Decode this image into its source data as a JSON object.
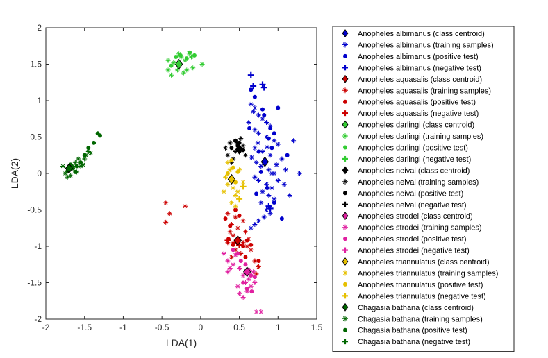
{
  "chart_data": {
    "type": "scatter",
    "xlabel": "LDA(1)",
    "ylabel": "LDA(2)",
    "xlim": [
      -2,
      1.5
    ],
    "ylim": [
      -2,
      2
    ],
    "xticks": [
      "-2",
      "-1.5",
      "-1",
      "-0.5",
      "0",
      "0.5",
      "1",
      "1.5"
    ],
    "yticks": [
      "2",
      "1.5",
      "1",
      "0.5",
      "0",
      "-0.5",
      "-1",
      "-1.5",
      "-2"
    ],
    "grid": false,
    "legend_position": "right-outside",
    "classes": [
      {
        "name": "Anopheles albimanus",
        "color": "#0000cc",
        "centroid": [
          0.83,
          0.16
        ],
        "training": [
          [
            0.65,
            0.95
          ],
          [
            0.7,
            0.9
          ],
          [
            0.75,
            0.8
          ],
          [
            0.8,
            0.75
          ],
          [
            0.85,
            0.7
          ],
          [
            0.9,
            0.65
          ],
          [
            0.7,
            0.6
          ],
          [
            0.75,
            0.55
          ],
          [
            0.85,
            0.5
          ],
          [
            0.95,
            0.45
          ],
          [
            1.0,
            0.4
          ],
          [
            0.7,
            0.35
          ],
          [
            0.8,
            0.3
          ],
          [
            0.9,
            0.25
          ],
          [
            1.05,
            0.2
          ],
          [
            0.72,
            0.15
          ],
          [
            0.78,
            0.1
          ],
          [
            0.88,
            0.05
          ],
          [
            0.95,
            0.0
          ],
          [
            1.1,
            0.05
          ],
          [
            0.7,
            -0.05
          ],
          [
            0.75,
            -0.1
          ],
          [
            0.85,
            -0.15
          ],
          [
            0.92,
            -0.2
          ],
          [
            1.0,
            -0.1
          ],
          [
            0.8,
            -0.25
          ],
          [
            0.88,
            -0.3
          ],
          [
            0.78,
            -0.4
          ],
          [
            0.95,
            -0.35
          ],
          [
            0.85,
            -0.5
          ],
          [
            0.9,
            -0.55
          ],
          [
            0.75,
            -0.65
          ],
          [
            0.7,
            -0.7
          ],
          [
            0.65,
            -0.75
          ],
          [
            0.82,
            -0.6
          ],
          [
            1.15,
            -0.3
          ],
          [
            1.28,
            0.0
          ],
          [
            1.2,
            0.45
          ],
          [
            0.62,
            0.7
          ],
          [
            0.68,
            0.85
          ],
          [
            0.92,
            0.0
          ],
          [
            0.98,
            0.12
          ],
          [
            0.74,
            0.42
          ],
          [
            0.66,
            0.22
          ],
          [
            0.86,
            0.36
          ],
          [
            1.08,
            -0.15
          ]
        ],
        "positive": [
          [
            0.65,
            1.15
          ],
          [
            0.7,
            1.05
          ],
          [
            0.8,
            0.88
          ],
          [
            0.9,
            0.62
          ],
          [
            0.95,
            0.55
          ],
          [
            0.88,
            0.48
          ],
          [
            0.75,
            0.3
          ],
          [
            0.86,
            -0.2
          ],
          [
            0.95,
            -0.4
          ],
          [
            1.05,
            -0.62
          ],
          [
            0.63,
            0.62
          ],
          [
            1.0,
            0.9
          ],
          [
            0.82,
            0.8
          ],
          [
            0.78,
            0.02
          ],
          [
            0.92,
            0.35
          ],
          [
            0.72,
            -0.28
          ],
          [
            1.12,
            0.25
          ]
        ],
        "negative": [
          [
            0.65,
            1.35
          ],
          [
            0.68,
            1.2
          ],
          [
            0.8,
            1.22
          ],
          [
            0.82,
            1.18
          ],
          [
            0.88,
            -0.45
          ],
          [
            0.9,
            -0.48
          ]
        ]
      },
      {
        "name": "Anopheles aquasalis",
        "color": "#cc0000",
        "centroid": [
          0.48,
          -0.92
        ],
        "training": [
          [
            -0.45,
            -0.4
          ],
          [
            -0.4,
            -0.55
          ],
          [
            -0.2,
            -0.45
          ],
          [
            -0.45,
            -0.67
          ],
          [
            0.35,
            -0.55
          ],
          [
            0.4,
            -0.7
          ],
          [
            0.45,
            -0.6
          ],
          [
            0.38,
            -0.8
          ],
          [
            0.42,
            -0.85
          ],
          [
            0.5,
            -0.9
          ],
          [
            0.55,
            -0.95
          ],
          [
            0.6,
            -1.0
          ],
          [
            0.35,
            -0.95
          ],
          [
            0.45,
            -1.05
          ],
          [
            0.52,
            -1.1
          ],
          [
            0.58,
            -0.8
          ],
          [
            0.62,
            -0.9
          ],
          [
            0.4,
            -1.15
          ],
          [
            0.7,
            -1.2
          ],
          [
            0.75,
            -1.28
          ],
          [
            0.72,
            -1.38
          ],
          [
            0.48,
            -0.75
          ],
          [
            0.55,
            -0.65
          ],
          [
            0.65,
            -1.05
          ]
        ],
        "positive": [
          [
            0.32,
            -0.62
          ],
          [
            0.38,
            -0.72
          ],
          [
            0.45,
            -0.5
          ],
          [
            0.5,
            -0.58
          ],
          [
            0.55,
            -1.0
          ],
          [
            0.6,
            -0.92
          ],
          [
            0.65,
            -0.98
          ],
          [
            0.42,
            -0.98
          ],
          [
            0.75,
            -1.2
          ],
          [
            0.36,
            -0.9
          ],
          [
            0.58,
            -1.15
          ]
        ],
        "negative": [
          [
            0.35,
            -0.92
          ],
          [
            0.44,
            -0.95
          ],
          [
            0.5,
            -0.98
          ]
        ]
      },
      {
        "name": "Anopheles darlingi",
        "color": "#33cc33",
        "centroid": [
          -0.28,
          1.5
        ],
        "training": [
          [
            -0.42,
            1.55
          ],
          [
            -0.42,
            1.42
          ],
          [
            -0.38,
            1.35
          ],
          [
            -0.3,
            1.42
          ],
          [
            -0.25,
            1.6
          ],
          [
            -0.2,
            1.55
          ],
          [
            -0.15,
            1.65
          ],
          [
            -0.12,
            1.6
          ],
          [
            -0.1,
            1.45
          ],
          [
            -0.18,
            1.42
          ],
          [
            -0.35,
            1.52
          ],
          [
            0.02,
            1.5
          ],
          [
            -0.28,
            1.64
          ],
          [
            -0.22,
            1.38
          ]
        ],
        "positive": [
          [
            -0.32,
            1.6
          ],
          [
            -0.26,
            1.62
          ],
          [
            -0.18,
            1.58
          ],
          [
            -0.14,
            1.66
          ],
          [
            -0.08,
            1.62
          ],
          [
            -0.38,
            1.48
          ]
        ],
        "negative": []
      },
      {
        "name": "Anopheles neivai",
        "color": "#000000",
        "centroid": [
          0.5,
          0.33
        ],
        "training": [
          [
            0.32,
            0.35
          ],
          [
            0.35,
            0.25
          ],
          [
            0.38,
            0.42
          ],
          [
            0.42,
            0.2
          ],
          [
            0.45,
            0.3
          ],
          [
            0.55,
            0.38
          ],
          [
            0.58,
            0.25
          ],
          [
            0.4,
            0.15
          ],
          [
            0.52,
            0.48
          ],
          [
            0.47,
            0.42
          ]
        ],
        "positive": [
          [
            0.45,
            0.45
          ],
          [
            0.5,
            0.42
          ],
          [
            0.55,
            0.32
          ],
          [
            0.4,
            0.35
          ],
          [
            0.48,
            0.38
          ]
        ],
        "negative": []
      },
      {
        "name": "Anopheles strodei",
        "color": "#e020a0",
        "centroid": [
          0.6,
          -1.35
        ],
        "training": [
          [
            0.3,
            -1.1
          ],
          [
            0.35,
            -1.2
          ],
          [
            0.38,
            -1.3
          ],
          [
            0.42,
            -1.25
          ],
          [
            0.5,
            -1.3
          ],
          [
            0.55,
            -1.4
          ],
          [
            0.58,
            -1.5
          ],
          [
            0.62,
            -1.45
          ],
          [
            0.65,
            -1.55
          ],
          [
            0.7,
            -1.5
          ],
          [
            0.5,
            -1.65
          ],
          [
            0.55,
            -1.7
          ],
          [
            0.6,
            -1.62
          ],
          [
            0.48,
            -1.55
          ],
          [
            0.72,
            -1.9
          ],
          [
            0.78,
            -1.9
          ],
          [
            0.68,
            -1.35
          ],
          [
            0.45,
            -1.12
          ],
          [
            0.35,
            -1.35
          ]
        ],
        "positive": [
          [
            0.42,
            -1.05
          ],
          [
            0.48,
            -1.1
          ],
          [
            0.52,
            -1.2
          ],
          [
            0.58,
            -1.25
          ],
          [
            0.62,
            -1.32
          ],
          [
            0.65,
            -1.4
          ],
          [
            0.7,
            -1.42
          ],
          [
            0.55,
            -1.5
          ],
          [
            0.6,
            -1.58
          ],
          [
            0.66,
            -1.62
          ]
        ],
        "negative": []
      },
      {
        "name": "Anopheles triannulatus",
        "color": "#e6c000",
        "centroid": [
          0.4,
          -0.08
        ],
        "training": [
          [
            0.32,
            -0.05
          ],
          [
            0.35,
            -0.15
          ],
          [
            0.38,
            0.05
          ],
          [
            0.42,
            -0.2
          ],
          [
            0.45,
            -0.3
          ],
          [
            0.48,
            -0.25
          ],
          [
            0.4,
            -0.4
          ],
          [
            0.45,
            -0.45
          ],
          [
            0.35,
            0.15
          ],
          [
            0.5,
            0.05
          ],
          [
            0.3,
            -0.25
          ],
          [
            0.55,
            -0.12
          ]
        ],
        "positive": [
          [
            0.35,
            0.0
          ],
          [
            0.42,
            0.08
          ],
          [
            0.48,
            0.02
          ],
          [
            0.45,
            -0.12
          ],
          [
            0.4,
            0.18
          ]
        ],
        "negative": [
          [
            0.5,
            -0.35
          ],
          [
            0.55,
            -0.18
          ]
        ]
      },
      {
        "name": "Chagasia bathana",
        "color": "#006600",
        "centroid": [
          -1.7,
          0.07
        ],
        "training": [
          [
            -1.78,
            0.1
          ],
          [
            -1.75,
            0.0
          ],
          [
            -1.7,
            0.05
          ],
          [
            -1.68,
            -0.03
          ],
          [
            -1.65,
            0.1
          ],
          [
            -1.62,
            0.15
          ],
          [
            -1.58,
            0.2
          ],
          [
            -1.55,
            0.1
          ],
          [
            -1.5,
            0.2
          ],
          [
            -1.48,
            0.25
          ],
          [
            -1.45,
            0.3
          ],
          [
            -1.52,
            0.12
          ],
          [
            -1.6,
            0.02
          ],
          [
            -1.72,
            -0.05
          ],
          [
            -1.42,
            0.28
          ]
        ],
        "positive": [
          [
            -1.68,
            0.12
          ],
          [
            -1.65,
            0.07
          ],
          [
            -1.62,
            0.02
          ],
          [
            -1.6,
            0.1
          ],
          [
            -1.55,
            0.15
          ],
          [
            -1.5,
            0.25
          ],
          [
            -1.45,
            0.35
          ],
          [
            -1.38,
            0.42
          ],
          [
            -1.33,
            0.55
          ],
          [
            -1.3,
            0.52
          ],
          [
            -1.7,
            0.08
          ],
          [
            -1.72,
            0.03
          ]
        ],
        "negative": []
      }
    ],
    "legend": [
      {
        "label": "Anopheles albimanus (class centroid)",
        "marker": "diamond",
        "color": "#0000cc"
      },
      {
        "label": "Anopheles albimanus (training samples)",
        "marker": "asterisk",
        "color": "#0000cc"
      },
      {
        "label": "Anopheles albimanus (positive test)",
        "marker": "circle",
        "color": "#0000cc"
      },
      {
        "label": "Anopheles albimanus (negative test)",
        "marker": "plus",
        "color": "#0000cc"
      },
      {
        "label": "Anopheles aquasalis (class centroid)",
        "marker": "diamond",
        "color": "#cc0000"
      },
      {
        "label": "Anopheles aquasalis (training samples)",
        "marker": "asterisk",
        "color": "#cc0000"
      },
      {
        "label": "Anopheles aquasalis (positive test)",
        "marker": "circle",
        "color": "#cc0000"
      },
      {
        "label": "Anopheles aquasalis (negative test)",
        "marker": "plus",
        "color": "#cc0000"
      },
      {
        "label": "Anopheles darlingi (class centroid)",
        "marker": "diamond",
        "color": "#33cc33"
      },
      {
        "label": "Anopheles darlingi (training samples)",
        "marker": "asterisk",
        "color": "#33cc33"
      },
      {
        "label": "Anopheles darlingi (positive test)",
        "marker": "circle",
        "color": "#33cc33"
      },
      {
        "label": "Anopheles darlingi (negative test)",
        "marker": "plus",
        "color": "#33cc33"
      },
      {
        "label": "Anopheles neivai (class centroid)",
        "marker": "diamond",
        "color": "#000000"
      },
      {
        "label": "Anopheles neivai (training samples)",
        "marker": "asterisk",
        "color": "#000000"
      },
      {
        "label": "Anopheles neivai (positive test)",
        "marker": "circle",
        "color": "#000000"
      },
      {
        "label": "Anopheles neivai (negative test)",
        "marker": "plus",
        "color": "#000000"
      },
      {
        "label": "Anopheles strodei (class centroid)",
        "marker": "diamond",
        "color": "#e020a0"
      },
      {
        "label": "Anopheles strodei (training samples)",
        "marker": "asterisk",
        "color": "#e020a0"
      },
      {
        "label": "Anopheles strodei (positive test)",
        "marker": "circle",
        "color": "#e020a0"
      },
      {
        "label": "Anopheles strodei (negative test)",
        "marker": "plus",
        "color": "#e020a0"
      },
      {
        "label": "Anopheles triannulatus (class centroid)",
        "marker": "diamond",
        "color": "#e6c000"
      },
      {
        "label": "Anopheles triannulatus (training samples)",
        "marker": "asterisk",
        "color": "#e6c000"
      },
      {
        "label": "Anopheles triannulatus (positive test)",
        "marker": "circle",
        "color": "#e6c000"
      },
      {
        "label": "Anopheles triannulatus (negative test)",
        "marker": "plus",
        "color": "#e6c000"
      },
      {
        "label": "Chagasia bathana (class centroid)",
        "marker": "diamond",
        "color": "#006600"
      },
      {
        "label": "Chagasia bathana (training samples)",
        "marker": "asterisk",
        "color": "#006600"
      },
      {
        "label": "Chagasia bathana (positive test)",
        "marker": "circle",
        "color": "#006600"
      },
      {
        "label": "Chagasia bathana (negative test)",
        "marker": "plus",
        "color": "#006600"
      }
    ]
  }
}
